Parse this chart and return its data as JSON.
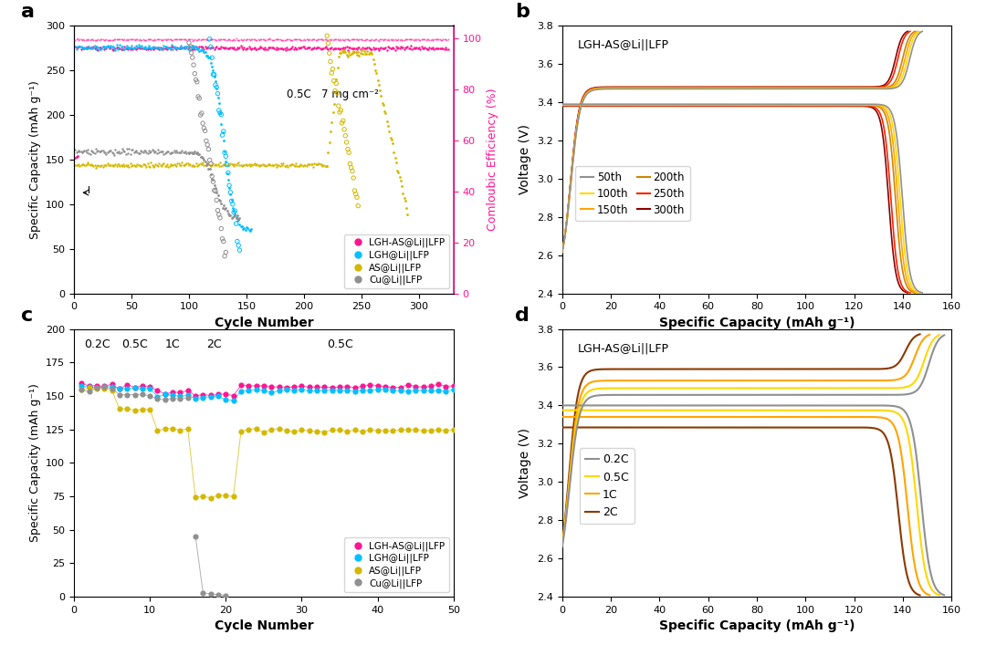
{
  "panel_a": {
    "xlabel": "Cycle Number",
    "ylabel": "Specific Capacity (mAh g⁻¹)",
    "ylabel2": "Comloubic Efficiency (%)",
    "annotation": "0.5C   7 mg cm⁻²",
    "colors": {
      "LGH-AS": "#FF1493",
      "LGH": "#00BFFF",
      "AS": "#D4B800",
      "Cu": "#909090"
    }
  },
  "panel_b": {
    "label": "LGH-AS@Li||LFP",
    "xlabel": "Specific Capacity (mAh g⁻¹)",
    "ylabel": "Voltage (V)",
    "legend_entries": [
      "50th",
      "100th",
      "150th",
      "200th",
      "250th",
      "300th"
    ],
    "colors": [
      "#909090",
      "#FFD700",
      "#FFA500",
      "#CD8500",
      "#FF2200",
      "#8B0000"
    ],
    "charge_v": [
      3.47,
      3.472,
      3.474,
      3.476,
      3.478,
      3.48
    ],
    "discharge_v": [
      3.39,
      3.388,
      3.386,
      3.384,
      3.382,
      3.38
    ],
    "cap_max": [
      148,
      147,
      146,
      145,
      143,
      142
    ]
  },
  "panel_c": {
    "xlabel": "Cycle Number",
    "ylabel": "Specific Capacity (mAh g⁻¹)",
    "colors": {
      "LGH-AS": "#FF1493",
      "LGH": "#00BFFF",
      "AS": "#D4B800",
      "Cu": "#909090"
    }
  },
  "panel_d": {
    "label": "LGH-AS@Li||LFP",
    "xlabel": "Specific Capacity (mAh g⁻¹)",
    "ylabel": "Voltage (V)",
    "legend_entries": [
      "0.2C",
      "0.5C",
      "1C",
      "2C"
    ],
    "colors": [
      "#909090",
      "#FFD700",
      "#FFA500",
      "#8B3A00"
    ],
    "charge_v": [
      3.455,
      3.49,
      3.53,
      3.59
    ],
    "discharge_v": [
      3.4,
      3.375,
      3.34,
      3.285
    ],
    "cap_max": [
      157,
      155,
      151,
      147
    ]
  }
}
